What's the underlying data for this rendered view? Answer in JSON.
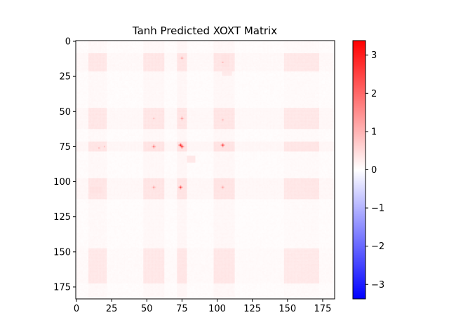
{
  "chart_data": {
    "type": "heatmap",
    "title": "Tanh Predicted XOXT Matrix",
    "xlabel": "",
    "ylabel": "",
    "matrix_size": 184,
    "xlim": [
      -0.5,
      183.5
    ],
    "ylim": [
      183.5,
      -0.5
    ],
    "x_ticks": [
      0,
      25,
      50,
      75,
      100,
      125,
      150,
      175
    ],
    "y_ticks": [
      0,
      25,
      50,
      75,
      100,
      125,
      150,
      175
    ],
    "colormap": "bwr",
    "vmin": -3.38,
    "vmax": 3.38,
    "colorbar_ticks": [
      3,
      2,
      1,
      0,
      -1,
      -2,
      -3
    ],
    "colorbar_tick_labels": [
      "3",
      "2",
      "1",
      "0",
      "−1",
      "−2",
      "−3"
    ],
    "grid": false,
    "colors": {
      "low": "#0000ff",
      "mid": "#ffffff",
      "high": "#ff0000"
    },
    "base_value": 0.03,
    "bands": [
      {
        "center": 15,
        "halfwidth": 6,
        "value": 0.09
      },
      {
        "center": 55,
        "halfwidth": 7,
        "value": 0.11
      },
      {
        "center": 75,
        "halfwidth": 3,
        "value": 0.14
      },
      {
        "center": 105,
        "halfwidth": 7,
        "value": 0.12
      },
      {
        "center": 160,
        "halfwidth": 12,
        "value": 0.05
      }
    ],
    "blocks": [
      {
        "r": [
          54,
          60
        ],
        "c": [
          54,
          60
        ],
        "value": 0.35
      },
      {
        "r": [
          10,
          18
        ],
        "c": [
          104,
          108
        ],
        "value": 0.4
      },
      {
        "r": [
          104,
          108
        ],
        "c": [
          10,
          18
        ],
        "value": 0.4
      },
      {
        "r": [
          160,
          166
        ],
        "c": [
          156,
          162
        ],
        "value": 0.28
      },
      {
        "r": [
          82,
          86
        ],
        "c": [
          79,
          84
        ],
        "value": 0.3
      },
      {
        "r": [
          20,
          24
        ],
        "c": [
          104,
          110
        ],
        "value": 0.3
      }
    ],
    "peaks": [
      {
        "r": 74,
        "c": 74,
        "value": 3.1
      },
      {
        "r": 75,
        "c": 75,
        "value": 2.8
      },
      {
        "r": 74,
        "c": 104,
        "value": 2.6
      },
      {
        "r": 104,
        "c": 74,
        "value": 2.6
      },
      {
        "r": 75,
        "c": 55,
        "value": 1.9
      },
      {
        "r": 55,
        "c": 75,
        "value": 1.5
      },
      {
        "r": 104,
        "c": 55,
        "value": 1.4
      },
      {
        "r": 12,
        "c": 75,
        "value": 1.2
      },
      {
        "r": 104,
        "c": 104,
        "value": 1.3
      },
      {
        "r": 56,
        "c": 104,
        "value": 1.0
      },
      {
        "r": 55,
        "c": 55,
        "value": 0.9
      },
      {
        "r": 15,
        "c": 104,
        "value": 0.9
      },
      {
        "r": 76,
        "c": 16,
        "value": 0.9
      },
      {
        "r": 75,
        "c": 20,
        "value": 0.8
      }
    ]
  }
}
